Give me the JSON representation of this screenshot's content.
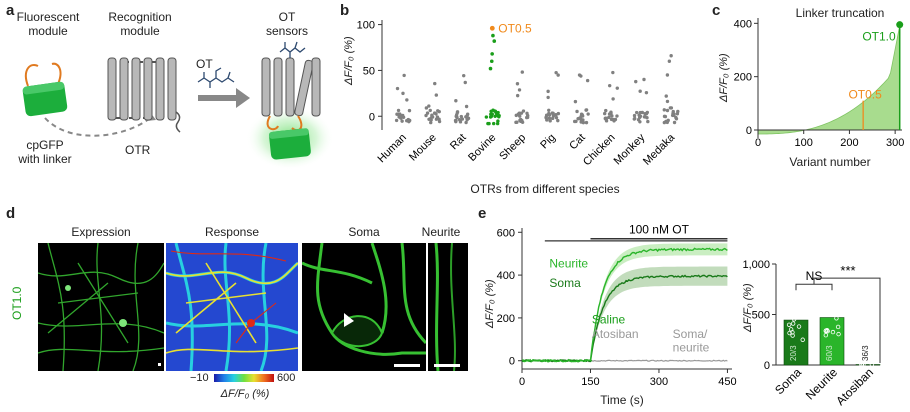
{
  "colors": {
    "green": "#1a9e1a",
    "light_green": "#7fcf6f",
    "orange": "#f08a1c",
    "gray": "#808080",
    "dark_green": "#0f6b12"
  },
  "panel_a": {
    "label": "a",
    "fluorescent_module": "Fluorescent\nmodule",
    "recognition_module": "Recognition\nmodule",
    "ot": "OT",
    "ot_sensors": "OT\nsensors",
    "cpgfp": "cpGFP\nwith linker",
    "otr": "OTR"
  },
  "panel_b": {
    "label": "b",
    "chart_data": {
      "type": "scatter",
      "ylabel": "ΔF/F₀ (%)",
      "xlabel": "OTRs from different species",
      "yticks": [
        0,
        50,
        100
      ],
      "ylim": [
        -15,
        105
      ],
      "categories": [
        "Human",
        "Mouse",
        "Rat",
        "Bovine",
        "Sheep",
        "Pig",
        "Cat",
        "Chicken",
        "Monkey",
        "Medaka"
      ],
      "highlight": "OT0.5",
      "highlight_value": 96
    }
  },
  "panel_c": {
    "label": "c",
    "chart_data": {
      "type": "area",
      "title": "Linker truncation",
      "xlabel": "Variant number",
      "ylabel": "ΔF/F₀ (%)",
      "xticks": [
        0,
        100,
        200,
        300
      ],
      "yticks": [
        0,
        200,
        400
      ],
      "xlim": [
        0,
        315
      ],
      "ylim": [
        -30,
        420
      ],
      "annotations": [
        {
          "text": "OT1.0",
          "x": 310,
          "y": 395
        },
        {
          "text": "OT0.5",
          "x": 230,
          "y": 95
        }
      ]
    }
  },
  "panel_d": {
    "label": "d",
    "side_label": "OT1.0",
    "titles": [
      "Expression",
      "Response",
      "Soma",
      "Neurite"
    ],
    "colorbar_min": "−10",
    "colorbar_max": "600",
    "colorbar_label": "ΔF/F₀ (%)"
  },
  "panel_e": {
    "label": "e",
    "chart_data": {
      "type": "line",
      "stim_label": "100 nM OT",
      "xlabel": "Time (s)",
      "ylabel": "ΔF/F₀ (%)",
      "xticks": [
        0,
        150,
        300,
        450
      ],
      "yticks": [
        0,
        200,
        400,
        600
      ],
      "xlim": [
        0,
        460
      ],
      "ylim": [
        -20,
        620
      ],
      "series": [
        {
          "name": "Neurite",
          "color": "#2ab52a",
          "plateau": 520
        },
        {
          "name": "Soma",
          "color": "#1a7a1a",
          "plateau": 395
        },
        {
          "name": "Saline",
          "color": "#1a9e1a",
          "plateau": 0
        },
        {
          "name": "Atosiban",
          "color": "#999999",
          "plateau": 0
        }
      ],
      "legend": [
        "Neurite",
        "Soma",
        "Saline",
        "Atosiban",
        "Soma/\nneurite"
      ]
    },
    "bar_chart": {
      "type": "bar",
      "ylabel": "ΔF/F₀ (%)",
      "ylim": [
        0,
        1000
      ],
      "yticks": [
        "0",
        "500",
        "1,000"
      ],
      "categories": [
        "Soma",
        "Neurite",
        "Atosiban"
      ],
      "values": [
        445,
        470,
        5
      ],
      "n_labels": [
        "20/3",
        "60/3",
        "36/3"
      ],
      "sig": [
        "NS",
        "***"
      ]
    }
  }
}
